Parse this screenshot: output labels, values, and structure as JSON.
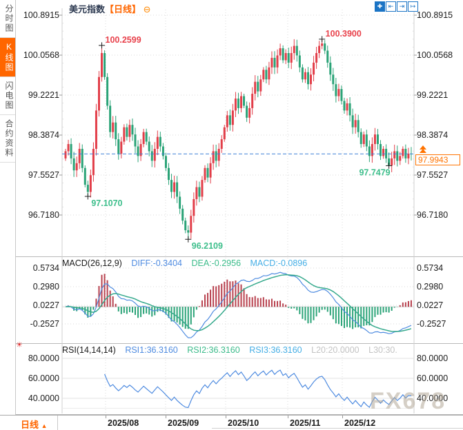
{
  "app": {
    "sidebar": {
      "tabs": [
        {
          "label": "分时图",
          "active": false
        },
        {
          "label": "K线图",
          "active": true
        },
        {
          "label": "闪电图",
          "active": false
        },
        {
          "label": "合约资料",
          "active": false
        }
      ],
      "active_color": "#FF6600"
    },
    "header": {
      "title": "美元指数",
      "period_tag": "【日线】",
      "collapse_glyph": "⊖"
    },
    "toolbar": {
      "icons": [
        {
          "name": "pan-crosshair-icon",
          "glyph": "✚"
        },
        {
          "name": "zoom-in-x-axis-icon",
          "glyph": "⇤"
        },
        {
          "name": "zoom-out-x-axis-icon",
          "glyph": "⇥"
        },
        {
          "name": "shift-right-icon",
          "glyph": "↦"
        }
      ]
    },
    "bottom_bar": {
      "period_label": "日线",
      "arrow": "▲"
    },
    "watermark": "FX678",
    "sun_icon_glyph": "☀"
  },
  "chart_data": {
    "type": "candlestick",
    "title": "美元指数",
    "period": "日线",
    "y_axis": {
      "labels": [
        "100.8915",
        "100.0568",
        "99.2221",
        "98.3874",
        "97.5527",
        "96.7180"
      ],
      "values": [
        100.8915,
        100.0568,
        99.2221,
        98.3874,
        97.5527,
        96.718
      ]
    },
    "x_ticks": {
      "labels": [
        "2025/08",
        "2025/09",
        "2025/10",
        "2025/11",
        "2025/12"
      ],
      "x": [
        153,
        240,
        327,
        417,
        496
      ]
    },
    "price_line": {
      "value": 97.9943,
      "label": "97.9943"
    },
    "open_first": 97.9,
    "closes": [
      98.05,
      98.2,
      97.9,
      97.65,
      97.8,
      98.1,
      97.7,
      97.35,
      97.2,
      97.55,
      98.1,
      98.9,
      99.6,
      100.1,
      99.6,
      99.0,
      98.45,
      98.65,
      98.3,
      98.0,
      98.25,
      98.55,
      98.35,
      98.6,
      98.4,
      98.15,
      97.95,
      98.2,
      98.45,
      98.25,
      98.05,
      97.85,
      98.1,
      98.35,
      98.15,
      97.95,
      97.7,
      97.45,
      97.2,
      97.4,
      97.1,
      96.85,
      96.6,
      96.4,
      96.35,
      96.7,
      97.05,
      97.3,
      97.1,
      97.45,
      97.7,
      97.5,
      97.8,
      98.05,
      97.85,
      98.1,
      98.3,
      98.55,
      98.8,
      98.6,
      98.9,
      99.15,
      98.95,
      99.2,
      99.0,
      98.75,
      98.95,
      99.25,
      99.5,
      99.3,
      99.55,
      99.75,
      99.55,
      99.8,
      100.0,
      99.8,
      100.05,
      100.2,
      99.95,
      100.1,
      99.9,
      100.1,
      100.25,
      100.05,
      99.8,
      99.55,
      99.7,
      99.45,
      99.65,
      99.9,
      100.1,
      100.25,
      100.3,
      100.15,
      99.9,
      99.65,
      99.45,
      99.2,
      99.35,
      99.1,
      98.9,
      99.05,
      98.8,
      98.55,
      98.7,
      98.45,
      98.2,
      98.4,
      98.15,
      97.95,
      98.2,
      98.4,
      98.2,
      97.95,
      98.1,
      97.9,
      97.75,
      97.9,
      98.05,
      97.85,
      97.95,
      98.1,
      97.9,
      98.0,
      97.9943
    ],
    "annotations": [
      {
        "idx": 13,
        "kind": "high",
        "value": 100.2599,
        "text": "100.2599",
        "placement": "above",
        "color": "#E8414B"
      },
      {
        "idx": 92,
        "kind": "high",
        "value": 100.39,
        "text": "100.3900",
        "placement": "above",
        "color": "#E8414B"
      },
      {
        "idx": 8,
        "kind": "low",
        "value": 97.107,
        "text": "97.1070",
        "placement": "below",
        "color": "#3DBE8B"
      },
      {
        "idx": 44,
        "kind": "low",
        "value": 96.2109,
        "text": "96.2109",
        "placement": "below",
        "color": "#3DBE8B"
      },
      {
        "idx": 116,
        "kind": "low",
        "value": 97.7479,
        "text": "97.7479",
        "placement": "left",
        "color": "#3DBE8B"
      }
    ],
    "macd": {
      "header": {
        "name": "MACD(26,12,9)",
        "diff": "DIFF:-0.3404",
        "dea": "DEA:-0.2956",
        "macd": "MACD:-0.0896"
      },
      "params": [
        26,
        12,
        9
      ],
      "axis": {
        "labels": [
          "0.5734",
          "0.2980",
          "0.0227",
          "-0.2527"
        ],
        "values": [
          0.5734,
          0.298,
          0.0227,
          -0.2527
        ]
      }
    },
    "rsi": {
      "header": {
        "name": "RSI(14,14,14)",
        "rsi1": "RSI1:36.3160",
        "rsi2": "RSI2:36.3160",
        "rsi3": "RSI3:36.3160",
        "l20": "L20:20.0000",
        "l30": "L30:30."
      },
      "params": [
        14,
        14,
        14
      ],
      "axis": {
        "labels": [
          "80.0000",
          "60.0000",
          "40.0000"
        ],
        "values": [
          80,
          60,
          40
        ]
      },
      "guide_levels": [
        30
      ]
    },
    "colors": {
      "up": "#E23E49",
      "down": "#2AA377",
      "macd_pos": "#B8414E",
      "macd_neg": "#2AA377",
      "diff_line": "#4E8BE0",
      "dea_line": "#35A98C",
      "rsi_line": "#4E8BE0",
      "price_line": "#3C7FD6",
      "grid": "#D8D8D8",
      "axis_text": "#1a1a1a",
      "accent_orange": "#FF7300"
    }
  }
}
